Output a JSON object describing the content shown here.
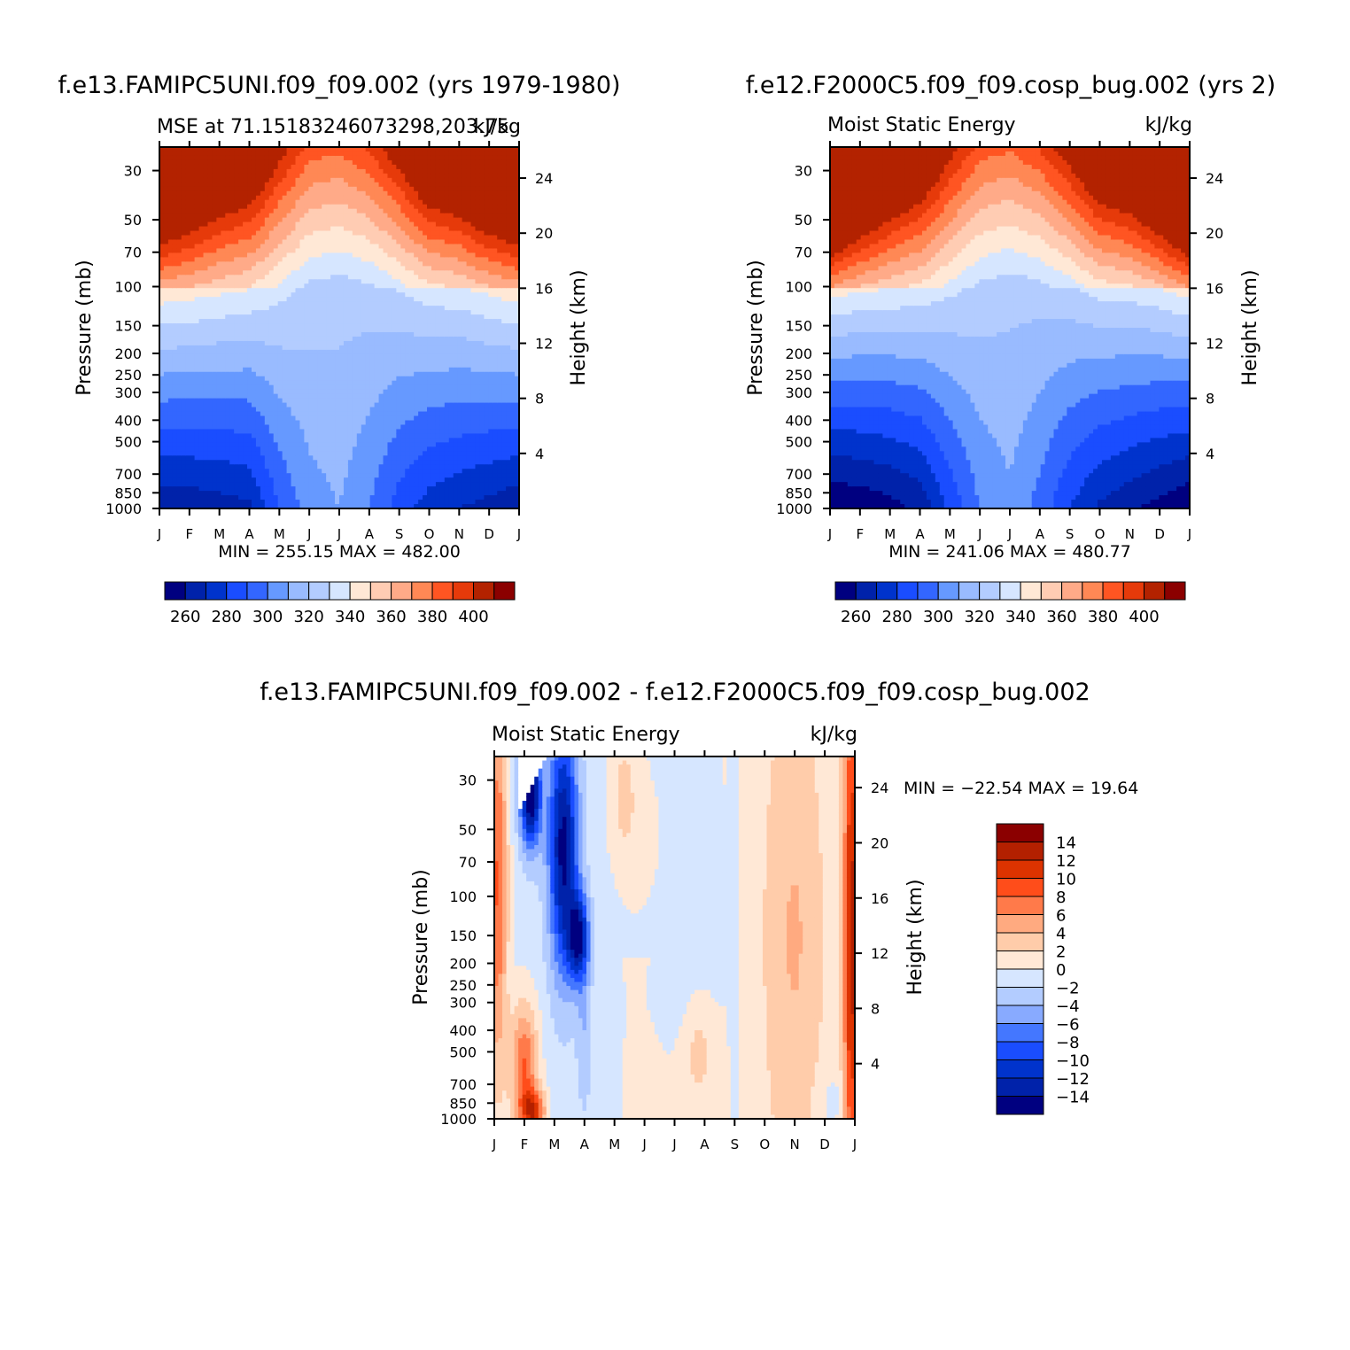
{
  "colors": {
    "mse_levels": [
      "#000080",
      "#0022aa",
      "#0033cc",
      "#1a4dff",
      "#3366ff",
      "#6699ff",
      "#99bbff",
      "#b3ccff",
      "#d6e6ff",
      "#ffe8d6",
      "#ffccb3",
      "#ffaa88",
      "#ff8855",
      "#ff5522",
      "#e63a0a",
      "#b32200",
      "#8b0000"
    ],
    "diff_levels": [
      "#000080",
      "#0022aa",
      "#0033cc",
      "#1a4dff",
      "#4477ff",
      "#88aaff",
      "#b3ccff",
      "#d6e6ff",
      "#ffe8d6",
      "#ffccaa",
      "#ffaa80",
      "#ff7a4a",
      "#ff4d1a",
      "#dd3300",
      "#b32000",
      "#8b0000"
    ]
  },
  "chart_data": [
    {
      "id": "panel1",
      "type": "heatmap",
      "title": "f.e13.FAMIPC5UNI.f09_f09.002 (yrs 1979-1980)",
      "subtitle_left": "MSE at 71.15183246073298,203.75",
      "subtitle_right": "kJ/kg",
      "ylabel": "Pressure (mb)",
      "ylabel_right": "Height (km)",
      "x_ticks": [
        "J",
        "F",
        "M",
        "A",
        "M",
        "J",
        "J",
        "A",
        "S",
        "O",
        "N",
        "D",
        "J"
      ],
      "y_ticks": [
        30,
        50,
        70,
        100,
        150,
        200,
        250,
        300,
        400,
        500,
        700,
        850,
        1000
      ],
      "y_right_ticks": [
        4,
        8,
        12,
        16,
        20,
        24
      ],
      "min_max": "MIN = 255.15 MAX = 482.00",
      "colorbar_labels": [
        "260",
        "280",
        "300",
        "320",
        "340",
        "360",
        "380",
        "400"
      ],
      "level_thresholds": [
        260,
        270,
        280,
        290,
        300,
        310,
        320,
        330,
        340,
        350,
        360,
        370,
        380,
        390,
        400
      ],
      "months_x": [
        0,
        1,
        2,
        3,
        4,
        5,
        6,
        7,
        8,
        9,
        10,
        11,
        12
      ],
      "field": {
        "upper_warm_ref_100mb": [
          350,
          348,
          345,
          342,
          335,
          328,
          325,
          327,
          332,
          338,
          340,
          345,
          350
        ],
        "tropopause_level_boost": [
          10,
          8,
          6,
          5,
          2,
          0,
          0,
          1,
          3,
          6,
          7,
          9,
          10
        ],
        "lower_cold_ref_1000mb": [
          262,
          263,
          265,
          268,
          290,
          305,
          310,
          300,
          285,
          275,
          270,
          266,
          262
        ]
      }
    },
    {
      "id": "panel2",
      "type": "heatmap",
      "title": "f.e12.F2000C5.f09_f09.cosp_bug.002 (yrs 2)",
      "subtitle_left": "Moist Static Energy",
      "subtitle_right": "kJ/kg",
      "ylabel": "Pressure (mb)",
      "ylabel_right": "Height (km)",
      "x_ticks": [
        "J",
        "F",
        "M",
        "A",
        "M",
        "J",
        "J",
        "A",
        "S",
        "O",
        "N",
        "D",
        "J"
      ],
      "y_ticks": [
        30,
        50,
        70,
        100,
        150,
        200,
        250,
        300,
        400,
        500,
        700,
        850,
        1000
      ],
      "y_right_ticks": [
        4,
        8,
        12,
        16,
        20,
        24
      ],
      "min_max": "MIN = 241.06 MAX = 480.77",
      "colorbar_labels": [
        "260",
        "280",
        "300",
        "320",
        "340",
        "360",
        "380",
        "400"
      ],
      "level_thresholds": [
        260,
        270,
        280,
        290,
        300,
        310,
        320,
        330,
        340,
        350,
        360,
        370,
        380,
        390,
        400
      ],
      "months_x": [
        0,
        1,
        2,
        3,
        4,
        5,
        6,
        7,
        8,
        9,
        10,
        11,
        12
      ],
      "field": {
        "upper_warm_ref_100mb": [
          348,
          344,
          342,
          340,
          334,
          328,
          324,
          326,
          330,
          336,
          338,
          342,
          348
        ],
        "tropopause_level_boost": [
          14,
          10,
          7,
          5,
          2,
          0,
          0,
          1,
          3,
          6,
          7,
          10,
          14
        ],
        "lower_cold_ref_1000mb": [
          250,
          252,
          256,
          262,
          282,
          300,
          308,
          296,
          280,
          268,
          262,
          256,
          250
        ]
      }
    },
    {
      "id": "panel3",
      "type": "heatmap",
      "title": "f.e13.FAMIPC5UNI.f09_f09.002 - f.e12.F2000C5.f09_f09.cosp_bug.002",
      "subtitle_left": "Moist Static Energy",
      "subtitle_right": "kJ/kg",
      "ylabel": "Pressure (mb)",
      "ylabel_right": "Height (km)",
      "x_ticks": [
        "J",
        "F",
        "M",
        "A",
        "M",
        "J",
        "J",
        "A",
        "S",
        "O",
        "N",
        "D",
        "J"
      ],
      "y_ticks": [
        30,
        50,
        70,
        100,
        150,
        200,
        250,
        300,
        400,
        500,
        700,
        850,
        1000
      ],
      "y_right_ticks": [
        4,
        8,
        12,
        16,
        20,
        24
      ],
      "min_max": "MIN = −22.54 MAX =  19.64",
      "colorbar_labels": [
        "14",
        "12",
        "10",
        "8",
        "6",
        "4",
        "2",
        "0",
        "−2",
        "−4",
        "−6",
        "−8",
        "−10",
        "−12",
        "−14"
      ],
      "level_thresholds": [
        -14,
        -12,
        -10,
        -8,
        -6,
        -4,
        -2,
        0,
        2,
        4,
        6,
        8,
        10,
        12,
        14
      ],
      "features": [
        {
          "month": 0.1,
          "level_frac": 0.35,
          "amp": 9,
          "sx": 0.35,
          "sy": 0.55
        },
        {
          "month": 1.0,
          "level_frac": 0.86,
          "amp": 9,
          "sx": 0.45,
          "sy": 0.18
        },
        {
          "month": 1.3,
          "level_frac": 0.98,
          "amp": 10,
          "sx": 0.4,
          "sy": 0.06
        },
        {
          "month": 2.3,
          "level_frac": 0.25,
          "amp": -14,
          "sx": 0.5,
          "sy": 0.35
        },
        {
          "month": 2.8,
          "level_frac": 0.5,
          "amp": -12,
          "sx": 0.35,
          "sy": 0.12
        },
        {
          "month": 1.2,
          "level_frac": 0.1,
          "amp": -16,
          "sx": 0.35,
          "sy": 0.15
        },
        {
          "month": 3.0,
          "level_frac": 0.75,
          "amp": -3,
          "sx": 0.25,
          "sy": 0.25
        },
        {
          "month": 4.3,
          "level_frac": 0.1,
          "amp": 3,
          "sx": 0.5,
          "sy": 0.2
        },
        {
          "month": 5.0,
          "level_frac": 0.3,
          "amp": 1,
          "sx": 0.8,
          "sy": 0.25
        },
        {
          "month": 6.0,
          "level_frac": 0.55,
          "amp": -1.2,
          "sx": 1.2,
          "sy": 0.25
        },
        {
          "month": 6.8,
          "level_frac": 0.82,
          "amp": 3,
          "sx": 0.5,
          "sy": 0.15
        },
        {
          "month": 8.0,
          "level_frac": 0.4,
          "amp": -1.5,
          "sx": 0.15,
          "sy": 0.6
        },
        {
          "month": 10.0,
          "level_frac": 0.5,
          "amp": 3,
          "sx": 1.0,
          "sy": 0.6
        },
        {
          "month": 11.2,
          "level_frac": 0.95,
          "amp": -1.5,
          "sx": 0.5,
          "sy": 0.08
        },
        {
          "month": 11.9,
          "level_frac": 0.5,
          "amp": 13,
          "sx": 0.28,
          "sy": 0.8
        }
      ]
    }
  ]
}
